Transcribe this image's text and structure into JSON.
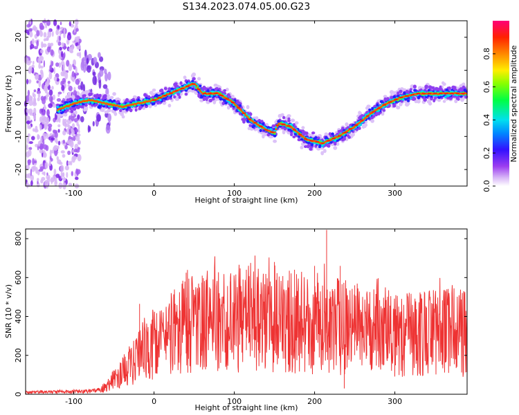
{
  "title": "S134.2023.074.05.00.G23",
  "chart_data": [
    {
      "type": "heatmap",
      "xlabel": "Height of straight line (km)",
      "ylabel": "Frequency (Hz)",
      "xlim": [
        -160,
        390
      ],
      "ylim": [
        -25,
        25
      ],
      "xticks": [
        -100,
        0,
        100,
        200,
        300
      ],
      "yticks": [
        -20,
        -10,
        0,
        10,
        20
      ],
      "colorbar": {
        "label": "Normalized spectral amplitude",
        "range": [
          0,
          1
        ],
        "ticks": [
          "0.0",
          "0.2",
          "0.4",
          "0.6",
          "0.8"
        ],
        "colormap": [
          "#ffffff",
          "#c9a0f5",
          "#8a2be2",
          "#1f1fff",
          "#00c8ff",
          "#00ff66",
          "#c8ff00",
          "#ffcc00",
          "#ff3300",
          "#ff0066"
        ]
      },
      "ridge": {
        "x": [
          -120,
          -100,
          -80,
          -60,
          -40,
          -20,
          0,
          20,
          40,
          50,
          60,
          80,
          100,
          120,
          140,
          150,
          155,
          170,
          190,
          210,
          230,
          250,
          270,
          290,
          310,
          330,
          350,
          370,
          390
        ],
        "y": [
          -2,
          0,
          1,
          0,
          -1,
          0,
          1,
          3,
          5,
          6,
          3,
          3,
          0,
          -5,
          -8,
          -9,
          -6,
          -7,
          -11,
          -12,
          -10,
          -7,
          -3,
          0,
          2,
          3,
          3,
          3,
          3
        ]
      }
    },
    {
      "type": "line",
      "xlabel": "Height of straight line (km)",
      "ylabel": "SNR (10 * v/v)",
      "xlim": [
        -160,
        390
      ],
      "ylim": [
        0,
        850
      ],
      "xticks": [
        -100,
        0,
        100,
        200,
        300
      ],
      "yticks": [
        0,
        200,
        400,
        600,
        800
      ],
      "color": "#ee3333",
      "envelope": {
        "x": [
          -160,
          -80,
          -70,
          -60,
          -40,
          -20,
          0,
          20,
          40,
          60,
          100,
          140,
          180,
          220,
          240,
          260,
          300,
          340,
          390
        ],
        "y": [
          10,
          15,
          20,
          40,
          110,
          190,
          250,
          310,
          350,
          370,
          380,
          375,
          370,
          360,
          340,
          330,
          320,
          315,
          315
        ]
      },
      "spikes": [
        [
          -18,
          465
        ],
        [
          15,
          445
        ],
        [
          40,
          625
        ],
        [
          60,
          610
        ],
        [
          95,
          580
        ],
        [
          115,
          640
        ],
        [
          130,
          600
        ],
        [
          150,
          680
        ],
        [
          175,
          640
        ],
        [
          200,
          660
        ],
        [
          215,
          845
        ],
        [
          232,
          660
        ],
        [
          237,
          30
        ],
        [
          250,
          560
        ],
        [
          265,
          520
        ]
      ]
    }
  ]
}
